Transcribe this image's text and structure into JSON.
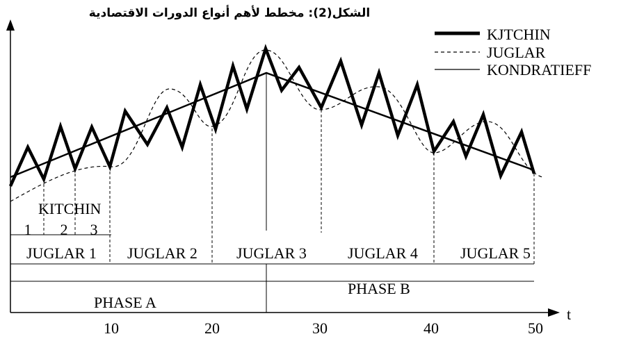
{
  "title": "الشكل(2): مخطط لأهم أنواع الدورات الاقتصادية",
  "legend": [
    "KJTCHIN",
    "JUGLAR",
    "KONDRATIEFF"
  ],
  "kitchin": {
    "label": "KITCHIN",
    "numbers": [
      1,
      2,
      3
    ]
  },
  "juglar": [
    "JUGLAR 1",
    "JUGLAR 2",
    "JUGLAR 3",
    "JUGLAR 4",
    "JUGLAR 5"
  ],
  "phases": [
    "PHASE A",
    "PHASE B"
  ],
  "x_axis": {
    "ticks": [
      10,
      20,
      30,
      40,
      50
    ],
    "label": "t"
  }
}
